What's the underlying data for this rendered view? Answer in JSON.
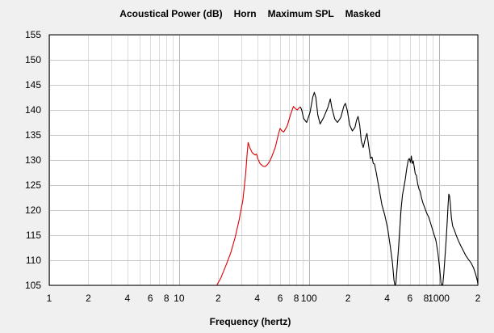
{
  "chart_data": {
    "type": "line",
    "title_parts": [
      "Acoustical Power (dB)",
      "Horn",
      "Maximum SPL",
      "Masked"
    ],
    "xlabel": "Frequency (hertz)",
    "ylabel": "",
    "x_scale": "log",
    "xlim": [
      1,
      2000
    ],
    "ylim": [
      105,
      155
    ],
    "x_tick_labels": [
      {
        "x": 1,
        "label": "1"
      },
      {
        "x": 2,
        "label": "2"
      },
      {
        "x": 4,
        "label": "4"
      },
      {
        "x": 6,
        "label": "6"
      },
      {
        "x": 8,
        "label": "8"
      },
      {
        "x": 10,
        "label": "10"
      },
      {
        "x": 20,
        "label": "2"
      },
      {
        "x": 40,
        "label": "4"
      },
      {
        "x": 60,
        "label": "6"
      },
      {
        "x": 80,
        "label": "8"
      },
      {
        "x": 100,
        "label": "100"
      },
      {
        "x": 200,
        "label": "2"
      },
      {
        "x": 400,
        "label": "4"
      },
      {
        "x": 600,
        "label": "6"
      },
      {
        "x": 800,
        "label": "8"
      },
      {
        "x": 1000,
        "label": "1000"
      },
      {
        "x": 2000,
        "label": "2"
      }
    ],
    "y_ticks": [
      105,
      110,
      115,
      120,
      125,
      130,
      135,
      140,
      145,
      150,
      155
    ],
    "grid": true,
    "series": [
      {
        "color": "#dd0000",
        "points": [
          [
            19.5,
            105
          ],
          [
            21,
            106.5
          ],
          [
            23,
            109
          ],
          [
            25,
            111.5
          ],
          [
            27,
            114.5
          ],
          [
            29,
            118
          ],
          [
            31,
            122
          ],
          [
            32.5,
            127
          ],
          [
            33.5,
            131.5
          ],
          [
            34,
            133.5
          ],
          [
            35,
            132.5
          ],
          [
            36.5,
            131.5
          ],
          [
            38.5,
            131
          ],
          [
            39.5,
            131.2
          ],
          [
            40.5,
            130.2
          ],
          [
            42,
            129.3
          ],
          [
            44,
            128.8
          ],
          [
            46,
            128.7
          ],
          [
            48,
            129.1
          ],
          [
            50,
            129.8
          ],
          [
            52,
            130.8
          ],
          [
            55,
            132.5
          ],
          [
            58,
            135
          ],
          [
            60,
            136.3
          ],
          [
            62,
            135.8
          ],
          [
            64,
            135.6
          ],
          [
            68,
            136.8
          ],
          [
            72,
            139
          ],
          [
            76,
            140.7
          ],
          [
            79,
            140.2
          ],
          [
            81.5,
            140
          ],
          [
            84,
            140.4
          ],
          [
            86,
            140.6
          ]
        ]
      },
      {
        "color": "#000000",
        "points": [
          [
            86,
            140.6
          ],
          [
            88,
            140
          ],
          [
            91,
            138.3
          ],
          [
            96,
            137.5
          ],
          [
            102,
            139.5
          ],
          [
            107,
            142.5
          ],
          [
            110,
            143.5
          ],
          [
            113,
            142.5
          ],
          [
            117,
            139
          ],
          [
            122,
            137.2
          ],
          [
            130,
            138.5
          ],
          [
            140,
            140.5
          ],
          [
            146,
            142.2
          ],
          [
            150,
            140.5
          ],
          [
            158,
            138.2
          ],
          [
            166,
            137.5
          ],
          [
            176,
            138.5
          ],
          [
            186,
            140.8
          ],
          [
            191,
            141.3
          ],
          [
            198,
            139.8
          ],
          [
            206,
            137
          ],
          [
            216,
            135.8
          ],
          [
            226,
            136.5
          ],
          [
            233,
            138
          ],
          [
            239,
            138.7
          ],
          [
            246,
            137
          ],
          [
            253,
            133.8
          ],
          [
            262,
            132.5
          ],
          [
            273,
            134.5
          ],
          [
            280,
            135.3
          ],
          [
            288,
            133
          ],
          [
            298,
            130.3
          ],
          [
            306,
            130.6
          ],
          [
            313,
            129.3
          ],
          [
            320,
            129.2
          ],
          [
            330,
            127.5
          ],
          [
            346,
            124.5
          ],
          [
            365,
            121
          ],
          [
            384,
            119
          ],
          [
            403,
            116.5
          ],
          [
            422,
            113
          ],
          [
            440,
            109.5
          ],
          [
            452,
            106
          ],
          [
            460,
            105
          ],
          [
            467,
            105.3
          ],
          [
            476,
            108
          ],
          [
            487,
            111.5
          ],
          [
            500,
            116
          ],
          [
            512,
            120
          ],
          [
            525,
            123
          ],
          [
            538,
            124.5
          ],
          [
            552,
            126.2
          ],
          [
            568,
            128.5
          ],
          [
            582,
            130
          ],
          [
            593,
            130.3
          ],
          [
            605,
            129.5
          ],
          [
            615,
            130.8
          ],
          [
            625,
            129.3
          ],
          [
            636,
            129.8
          ],
          [
            648,
            128.5
          ],
          [
            660,
            127.2
          ],
          [
            672,
            127
          ],
          [
            688,
            125.2
          ],
          [
            704,
            124.2
          ],
          [
            718,
            123.8
          ],
          [
            738,
            122.3
          ],
          [
            758,
            121.3
          ],
          [
            780,
            120.5
          ],
          [
            810,
            119.3
          ],
          [
            840,
            118.5
          ],
          [
            875,
            117
          ],
          [
            910,
            115.5
          ],
          [
            950,
            114
          ],
          [
            985,
            111.5
          ],
          [
            1015,
            108.5
          ],
          [
            1040,
            105.5
          ],
          [
            1055,
            105
          ],
          [
            1075,
            105.2
          ],
          [
            1095,
            107.5
          ],
          [
            1115,
            110.5
          ],
          [
            1140,
            114
          ],
          [
            1165,
            118.2
          ],
          [
            1180,
            121
          ],
          [
            1195,
            123.2
          ],
          [
            1210,
            122.8
          ],
          [
            1225,
            121.5
          ],
          [
            1250,
            118.5
          ],
          [
            1280,
            116.8
          ],
          [
            1320,
            116
          ],
          [
            1360,
            115
          ],
          [
            1410,
            114
          ],
          [
            1470,
            113
          ],
          [
            1540,
            112
          ],
          [
            1610,
            111
          ],
          [
            1690,
            110.2
          ],
          [
            1770,
            109.5
          ],
          [
            1850,
            108.5
          ],
          [
            1920,
            107.3
          ],
          [
            1980,
            106
          ],
          [
            2000,
            105.3
          ]
        ]
      }
    ]
  }
}
